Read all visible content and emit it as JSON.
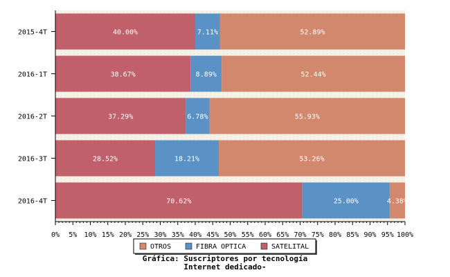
{
  "chart_data": {
    "type": "bar",
    "orientation": "horizontal",
    "stacked": true,
    "categories": [
      "2015-4T",
      "2016-1T",
      "2016-2T",
      "2016-3T",
      "2016-4T"
    ],
    "series": [
      {
        "name": "SATELITAL",
        "color": "#c0606b",
        "values": [
          40.0,
          38.67,
          37.29,
          28.52,
          70.62
        ],
        "labels": [
          "40.00%",
          "38.67%",
          "37.29%",
          "28.52%",
          "70.62%"
        ]
      },
      {
        "name": "FIBRA OPTICA",
        "color": "#5b92c5",
        "values": [
          7.11,
          8.89,
          6.78,
          18.21,
          25.0
        ],
        "labels": [
          "7.11%",
          "8.89%",
          "6.78%",
          "18.21%",
          "25.00%"
        ]
      },
      {
        "name": "OTROS",
        "color": "#d2886c",
        "values": [
          52.89,
          52.44,
          55.93,
          53.26,
          4.38
        ],
        "labels": [
          "52.89%",
          "52.44%",
          "55.93%",
          "53.26%",
          "4.38%"
        ]
      }
    ],
    "xlim": [
      0,
      100
    ],
    "xticks": [
      "0%",
      "5%",
      "10%",
      "15%",
      "20%",
      "25%",
      "30%",
      "35%",
      "40%",
      "45%",
      "50%",
      "55%",
      "60%",
      "65%",
      "70%",
      "75%",
      "80%",
      "85%",
      "90%",
      "95%",
      "100%"
    ],
    "legend_order": [
      "OTROS",
      "FIBRA OPTICA",
      "SATELITAL"
    ],
    "legend_position": "bottom-center",
    "title_lines": [
      "Gráfica: Suscriptores por tecnología",
      "Internet dedicado-"
    ]
  }
}
